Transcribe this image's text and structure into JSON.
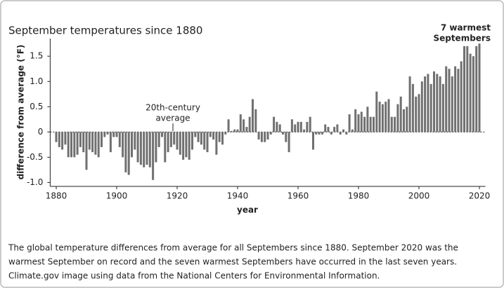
{
  "chart_data": {
    "type": "bar",
    "title": "September temperatures since 1880",
    "y_label": "difference from average (°F)",
    "x_label": "year",
    "annotations": [
      [
        "20th-century",
        "average"
      ],
      [
        "7 warmest",
        "Septembers"
      ]
    ],
    "caption": [
      "The global temperature differences from average for all Septembers since 1880. September 2020 was the",
      "warmest September on record and the seven warmest Septembers have occurred in the last seven years.",
      "Climate.gov image using data from the National Centers for Environmental Information."
    ],
    "color": "#707070",
    "x": [
      1880,
      1881,
      1882,
      1883,
      1884,
      1885,
      1886,
      1887,
      1888,
      1889,
      1890,
      1891,
      1892,
      1893,
      1894,
      1895,
      1896,
      1897,
      1898,
      1899,
      1900,
      1901,
      1902,
      1903,
      1904,
      1905,
      1906,
      1907,
      1908,
      1909,
      1910,
      1911,
      1912,
      1913,
      1914,
      1915,
      1916,
      1917,
      1918,
      1919,
      1920,
      1921,
      1922,
      1923,
      1924,
      1925,
      1926,
      1927,
      1928,
      1929,
      1930,
      1931,
      1932,
      1933,
      1934,
      1935,
      1936,
      1937,
      1938,
      1939,
      1940,
      1941,
      1942,
      1943,
      1944,
      1945,
      1946,
      1947,
      1948,
      1949,
      1950,
      1951,
      1952,
      1953,
      1954,
      1955,
      1956,
      1957,
      1958,
      1959,
      1960,
      1961,
      1962,
      1963,
      1964,
      1965,
      1966,
      1967,
      1968,
      1969,
      1970,
      1971,
      1972,
      1973,
      1974,
      1975,
      1976,
      1977,
      1978,
      1979,
      1980,
      1981,
      1982,
      1983,
      1984,
      1985,
      1986,
      1987,
      1988,
      1989,
      1990,
      1991,
      1992,
      1993,
      1994,
      1995,
      1996,
      1997,
      1998,
      1999,
      2000,
      2001,
      2002,
      2003,
      2004,
      2005,
      2006,
      2007,
      2008,
      2009,
      2010,
      2011,
      2012,
      2013,
      2014,
      2015,
      2016,
      2017,
      2018,
      2019,
      2020
    ],
    "values": [
      -0.2,
      -0.3,
      -0.35,
      -0.25,
      -0.5,
      -0.5,
      -0.5,
      -0.45,
      -0.3,
      -0.4,
      -0.75,
      -0.35,
      -0.4,
      -0.45,
      -0.5,
      -0.3,
      -0.1,
      -0.05,
      -0.4,
      -0.1,
      -0.1,
      -0.3,
      -0.5,
      -0.8,
      -0.85,
      -0.5,
      -0.35,
      -0.6,
      -0.65,
      -0.7,
      -0.65,
      -0.7,
      -0.95,
      -0.6,
      -0.3,
      -0.1,
      -0.6,
      -0.4,
      -0.3,
      -0.25,
      -0.35,
      -0.45,
      -0.55,
      -0.5,
      -0.55,
      -0.35,
      -0.1,
      -0.2,
      -0.25,
      -0.35,
      -0.4,
      -0.1,
      -0.15,
      -0.45,
      -0.2,
      -0.25,
      -0.05,
      0.25,
      0.02,
      0.05,
      0.05,
      0.35,
      0.25,
      0.1,
      0.3,
      0.65,
      0.45,
      -0.15,
      -0.2,
      -0.2,
      -0.15,
      -0.05,
      0.3,
      0.2,
      0.15,
      -0.05,
      -0.2,
      -0.4,
      0.25,
      0.15,
      0.2,
      0.2,
      0.05,
      0.2,
      0.3,
      -0.35,
      -0.05,
      -0.05,
      -0.05,
      0.15,
      0.1,
      -0.05,
      0.1,
      0.15,
      -0.05,
      0.05,
      -0.05,
      0.35,
      0.05,
      0.45,
      0.35,
      0.4,
      0.3,
      0.5,
      0.3,
      0.3,
      0.8,
      0.6,
      0.55,
      0.6,
      0.65,
      0.3,
      0.3,
      0.55,
      0.7,
      0.45,
      0.5,
      1.1,
      0.95,
      0.7,
      0.75,
      1.0,
      1.1,
      1.15,
      0.95,
      1.2,
      1.15,
      1.1,
      0.95,
      1.3,
      1.25,
      1.1,
      1.3,
      1.25,
      1.4,
      1.7,
      1.7,
      1.55,
      1.5,
      1.7,
      1.75
    ],
    "xlim": [
      1878,
      2022
    ],
    "xticks": [
      1880,
      1900,
      1920,
      1940,
      1960,
      1980,
      2000,
      2020
    ],
    "ylim": [
      -1.05,
      1.85
    ],
    "yticks": [
      {
        "value": -1,
        "label": "-1.0"
      },
      -0.5,
      0,
      0.5,
      {
        "value": 1,
        "label": "1.0"
      },
      1.5
    ]
  }
}
